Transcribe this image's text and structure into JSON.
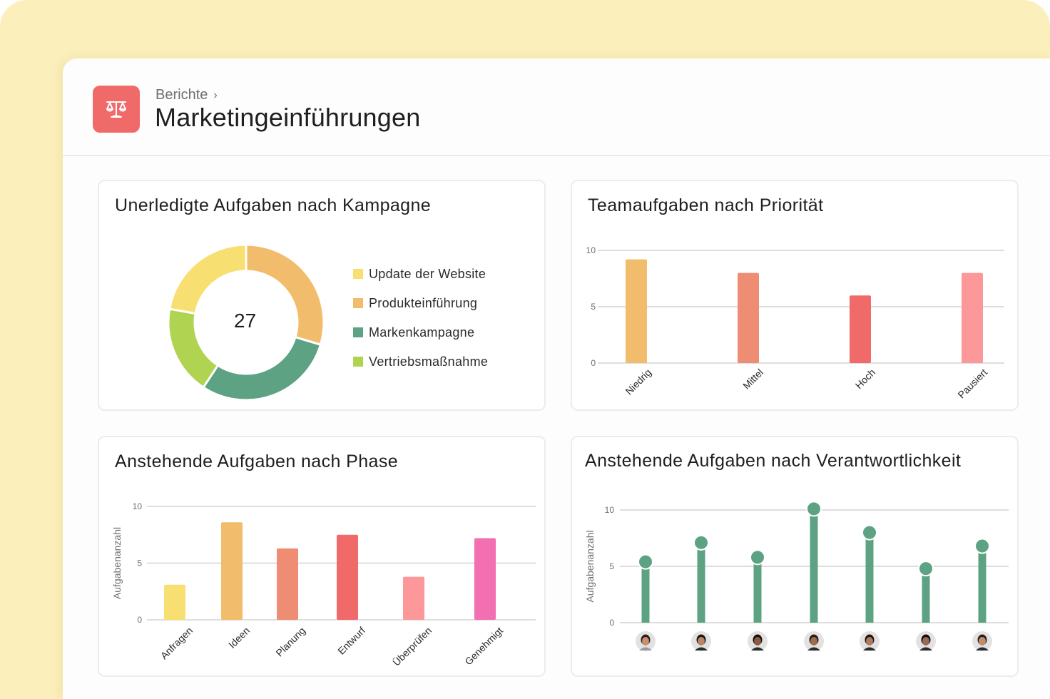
{
  "header": {
    "breadcrumb": "Berichte",
    "breadcrumb_chevron": "›",
    "title": "Marketingeinführungen",
    "icon": "scales-icon",
    "icon_color": "#f06a6a"
  },
  "chart_data": [
    {
      "id": "campaign",
      "type": "pie",
      "title": "Unerledigte Aufgaben nach Kampagne",
      "center_label": "27",
      "total": 27,
      "slices": [
        {
          "label": "Produkteinführung",
          "value": 8,
          "color": "#f1bd6c"
        },
        {
          "label": "Markenkampagne",
          "value": 8,
          "color": "#5da283"
        },
        {
          "label": "Vertriebsmaßnahme",
          "value": 5,
          "color": "#b1d352"
        },
        {
          "label": "Update der Website",
          "value": 6,
          "color": "#f8df72"
        }
      ],
      "legend": [
        {
          "label": "Update der Website",
          "color": "#f8df72"
        },
        {
          "label": "Produkteinführung",
          "color": "#f1bd6c"
        },
        {
          "label": "Markenkampagne",
          "color": "#5da283"
        },
        {
          "label": "Vertriebsmaßnahme",
          "color": "#b1d352"
        }
      ],
      "legend_position": "right"
    },
    {
      "id": "priority",
      "type": "bar",
      "title": "Teamaufgaben nach Priorität",
      "categories": [
        "Niedrig",
        "Mittel",
        "Hoch",
        "Pausiert"
      ],
      "values": [
        9.2,
        8,
        6,
        8
      ],
      "colors": [
        "#f1bd6c",
        "#ef8c74",
        "#f06a6a",
        "#fc979a"
      ],
      "xlabel": "",
      "ylabel": "",
      "ylim": [
        0,
        10
      ],
      "yticks": [
        "0",
        "5",
        "10"
      ],
      "grid": true
    },
    {
      "id": "phase",
      "type": "bar",
      "title": "Anstehende Aufgaben nach Phase",
      "categories": [
        "Anfragen",
        "Ideen",
        "Planung",
        "Entwurf",
        "Überprüfen",
        "Genehmigt"
      ],
      "values": [
        3.1,
        8.6,
        6.3,
        7.5,
        3.8,
        7.2
      ],
      "colors": [
        "#f8df72",
        "#f1bd6c",
        "#ef8c74",
        "#f06a6a",
        "#fc979a",
        "#f26fb2"
      ],
      "xlabel": "",
      "ylabel": "Aufgabenanzahl",
      "ylim": [
        0,
        10
      ],
      "yticks": [
        "0",
        "5",
        "10"
      ],
      "grid": true
    },
    {
      "id": "assignee",
      "type": "lollipop",
      "title": "Anstehende Aufgaben nach Verantwortlichkeit",
      "categories": [
        "avatar-1",
        "avatar-2",
        "avatar-3",
        "avatar-4",
        "avatar-5",
        "avatar-6",
        "avatar-7"
      ],
      "values": [
        5.4,
        7.1,
        5.8,
        10.1,
        8.0,
        4.8,
        6.8
      ],
      "color": "#5da283",
      "xlabel": "",
      "ylabel": "Aufgabenanzahl",
      "ylim": [
        0,
        10
      ],
      "yticks": [
        "0",
        "5",
        "10"
      ],
      "grid": true
    }
  ]
}
